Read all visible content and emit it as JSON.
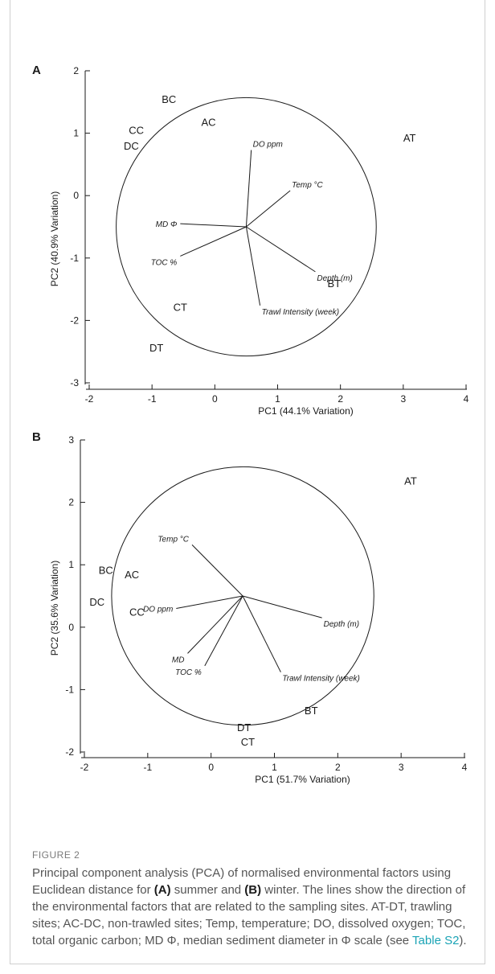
{
  "chart_data": [
    {
      "type": "scatter",
      "panel": "A",
      "xlabel": "PC1 (44.1% Variation)",
      "ylabel": "PC2 (40.9% Variation)",
      "xlim": [
        -2,
        4
      ],
      "ylim": [
        -3,
        2
      ],
      "x_ticks": [
        -2,
        -1,
        0,
        1,
        2,
        3,
        4
      ],
      "y_ticks": [
        -3,
        -2,
        -1,
        0,
        1,
        2
      ],
      "sites": [
        {
          "label": "BC",
          "x": -0.73,
          "y": 1.55
        },
        {
          "label": "AC",
          "x": -0.1,
          "y": 1.18
        },
        {
          "label": "CC",
          "x": -1.25,
          "y": 1.05
        },
        {
          "label": "DC",
          "x": -1.33,
          "y": 0.8
        },
        {
          "label": "AT",
          "x": 3.1,
          "y": 0.93
        },
        {
          "label": "BT",
          "x": 1.9,
          "y": -1.4
        },
        {
          "label": "CT",
          "x": -0.55,
          "y": -1.78
        },
        {
          "label": "DT",
          "x": -0.93,
          "y": -2.43
        }
      ],
      "circle": {
        "center": [
          0.5,
          -0.5
        ],
        "radius": 2.07
      },
      "vectors": [
        {
          "label": "DO ppm",
          "x": 0.58,
          "y": 0.73
        },
        {
          "label": "Temp °C",
          "x": 1.2,
          "y": 0.08
        },
        {
          "label": "MD Φ",
          "x": -0.55,
          "y": -0.45
        },
        {
          "label": "TOC %",
          "x": -0.55,
          "y": -0.97
        },
        {
          "label": "Depth (m)",
          "x": 1.6,
          "y": -1.22
        },
        {
          "label": "Trawl Intensity (week)",
          "x": 0.72,
          "y": -1.76
        }
      ]
    },
    {
      "type": "scatter",
      "panel": "B",
      "xlabel": "PC1 (51.7% Variation)",
      "ylabel": "PC2 (35.6% Variation)",
      "xlim": [
        -2,
        4
      ],
      "ylim": [
        -2,
        3
      ],
      "x_ticks": [
        -2,
        -1,
        0,
        1,
        2,
        3,
        4
      ],
      "y_ticks": [
        -2,
        -1,
        0,
        1,
        2,
        3
      ],
      "sites": [
        {
          "label": "AT",
          "x": 3.15,
          "y": 2.35
        },
        {
          "label": "BC",
          "x": -1.66,
          "y": 0.92
        },
        {
          "label": "AC",
          "x": -1.25,
          "y": 0.85
        },
        {
          "label": "DC",
          "x": -1.8,
          "y": 0.41
        },
        {
          "label": "CC",
          "x": -1.17,
          "y": 0.25
        },
        {
          "label": "BT",
          "x": 1.58,
          "y": -1.33
        },
        {
          "label": "DT",
          "x": 0.52,
          "y": -1.6
        },
        {
          "label": "CT",
          "x": 0.58,
          "y": -1.83
        }
      ],
      "circle": {
        "center": [
          0.5,
          0.5
        ],
        "radius": 2.07
      },
      "vectors": [
        {
          "label": "Temp °C",
          "x": -0.3,
          "y": 1.32
        },
        {
          "label": "DO ppm",
          "x": -0.55,
          "y": 0.3
        },
        {
          "label": "MD",
          "x": -0.37,
          "y": -0.42
        },
        {
          "label": "TOC %",
          "x": -0.1,
          "y": -0.62
        },
        {
          "label": "Depth (m)",
          "x": 1.75,
          "y": 0.15
        },
        {
          "label": "Trawl Intensity (week)",
          "x": 1.1,
          "y": -0.72
        }
      ]
    }
  ],
  "caption": {
    "label": "FIGURE 2",
    "part1": "Principal component analysis (PCA) of normalised environmental factors using Euclidean distance for ",
    "bold_a": "(A)",
    "part2": " summer and ",
    "bold_b": "(B)",
    "part3": " winter. The lines show the direction of the environmental factors that are related to the sampling sites. AT-DT, trawling sites; AC-DC, non-trawled sites; Temp, temperature; DO, dissolved oxygen; TOC, total organic carbon; MD Φ, median sediment diameter in Φ scale (see ",
    "link": "Table S2",
    "part4": ")."
  }
}
